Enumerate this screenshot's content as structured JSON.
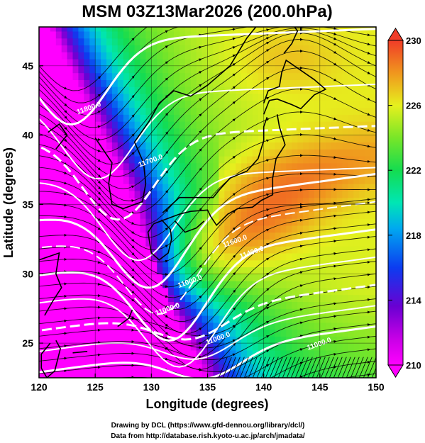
{
  "chart_data": {
    "type": "heatmap",
    "title": "MSM 03Z13Mar2026 (200.0hPa)",
    "xlabel": "Longitude (degrees)",
    "ylabel": "Latitude  (degrees)",
    "xlim": [
      120,
      150
    ],
    "ylim": [
      22.5,
      47.8
    ],
    "x_ticks": [
      "120",
      "125",
      "130",
      "135",
      "140",
      "145",
      "150"
    ],
    "y_ticks": [
      "25",
      "30",
      "35",
      "40",
      "45"
    ],
    "colorbar": {
      "range": [
        210,
        230
      ],
      "ticks": [
        "210",
        "214",
        "218",
        "222",
        "226",
        "230"
      ],
      "extend": "both"
    },
    "contour_labels": [
      {
        "text": "11800.0",
        "lon": 124.5,
        "lat": 41.8
      },
      {
        "text": "11700.0",
        "lon": 130.0,
        "lat": 38.0
      },
      {
        "text": "11600.0",
        "lon": 137.5,
        "lat": 32.2
      },
      {
        "text": "11400.0",
        "lon": 139.0,
        "lat": 31.4
      },
      {
        "text": "11000.0",
        "lon": 133.5,
        "lat": 29.3
      },
      {
        "text": "11000.0",
        "lon": 131.5,
        "lat": 27.3
      },
      {
        "text": "11000.0",
        "lon": 136.0,
        "lat": 25.2
      },
      {
        "text": "11000.0",
        "lon": 145.0,
        "lat": 24.8
      }
    ],
    "grid": true,
    "streamlines": true,
    "coastlines": true
  },
  "credits": {
    "line1": "Drawing by DCL (https://www.gfd-dennou.org/library/dcl/)",
    "line2": "Data from http://database.rish.kyoto-u.ac.jp/arch/jmadata/"
  }
}
